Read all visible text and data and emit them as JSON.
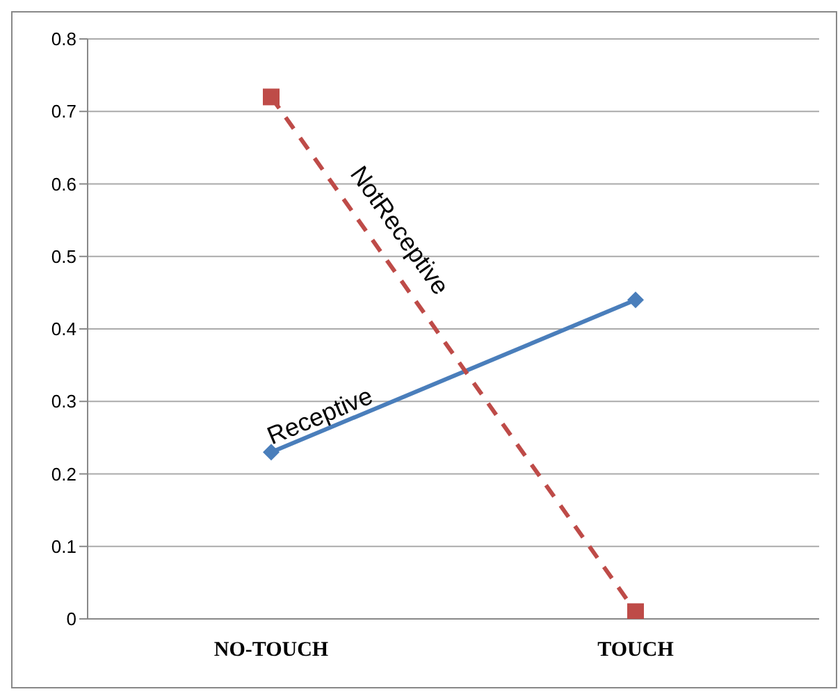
{
  "chart_data": {
    "type": "line",
    "categories": [
      "NO-TOUCH",
      "TOUCH"
    ],
    "series": [
      {
        "name": "Receptive",
        "color": "#4a7ebb",
        "values": [
          0.23,
          0.44
        ],
        "marker": "diamond",
        "line_style": "solid"
      },
      {
        "name": "NotReceptive",
        "color": "#be4b48",
        "values": [
          0.72,
          0.01
        ],
        "marker": "square",
        "line_style": "dashed"
      }
    ],
    "ylim": [
      0,
      0.8
    ],
    "yticks": [
      0,
      0.1,
      0.2,
      0.3,
      0.4,
      0.5,
      0.6,
      0.7,
      0.8
    ],
    "grid": "y",
    "legend": false
  }
}
